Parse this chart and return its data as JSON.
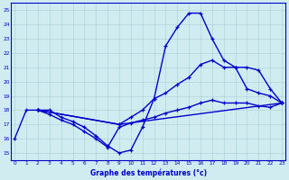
{
  "xlabel": "Graphe des températures (°c)",
  "line_color": "#0000cc",
  "bg_color": "#d0ecf0",
  "grid_color": "#b0d4dc",
  "ylim": [
    14.5,
    25.5
  ],
  "xlim": [
    -0.3,
    23.3
  ],
  "yticks": [
    15,
    16,
    17,
    18,
    19,
    20,
    21,
    22,
    23,
    24,
    25
  ],
  "xticks": [
    0,
    1,
    2,
    3,
    4,
    5,
    6,
    7,
    8,
    9,
    10,
    11,
    12,
    13,
    14,
    15,
    16,
    17,
    18,
    19,
    20,
    21,
    22,
    23
  ],
  "curve1_x": [
    0,
    1,
    2,
    3,
    4,
    5,
    6,
    7,
    8,
    9,
    10,
    11,
    12,
    13,
    14,
    15,
    16,
    17,
    18,
    19,
    20,
    21,
    22,
    23
  ],
  "curve1_y": [
    16,
    18,
    18,
    18,
    17.5,
    17.2,
    16.8,
    16.2,
    15.5,
    15.0,
    15.2,
    16.8,
    18.8,
    22.5,
    23.8,
    24.8,
    24.8,
    23.0,
    21.5,
    21.0,
    19.5,
    19.2,
    19.0,
    18.5
  ],
  "curve2_x": [
    2,
    3,
    4,
    5,
    6,
    7,
    8,
    9,
    10,
    11,
    12,
    13,
    14,
    15,
    16,
    17,
    18,
    19,
    20,
    21,
    22,
    23
  ],
  "curve2_y": [
    18,
    17.7,
    17.3,
    17.0,
    16.5,
    16.0,
    15.4,
    16.8,
    17.1,
    17.3,
    17.5,
    17.8,
    18.0,
    18.2,
    18.5,
    18.7,
    18.5,
    18.5,
    18.5,
    18.3,
    18.2,
    18.5
  ],
  "curve3_x": [
    2,
    9,
    10,
    11,
    12,
    13,
    14,
    15,
    16,
    17,
    18,
    19,
    20,
    21,
    22,
    23
  ],
  "curve3_y": [
    18,
    17.0,
    17.5,
    18.0,
    18.8,
    19.2,
    19.8,
    20.3,
    21.2,
    21.5,
    21.0,
    21.0,
    21.0,
    20.8,
    19.5,
    18.5
  ],
  "curve4_x": [
    2,
    9,
    23
  ],
  "curve4_y": [
    18,
    17.0,
    18.5
  ]
}
